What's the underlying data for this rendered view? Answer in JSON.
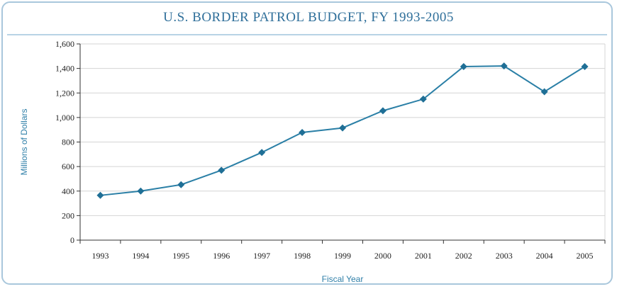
{
  "chart_data": {
    "type": "line",
    "title": "U.S. BORDER PATROL BUDGET, FY 1993-2005",
    "xlabel": "Fiscal Year",
    "ylabel": "Millions of Dollars",
    "categories": [
      "1993",
      "1994",
      "1995",
      "1996",
      "1997",
      "1998",
      "1999",
      "2000",
      "2001",
      "2002",
      "2003",
      "2004",
      "2005"
    ],
    "series": [
      {
        "values": [
          365,
          400,
          452,
          570,
          715,
          878,
          915,
          1055,
          1150,
          1415,
          1420,
          1210,
          1415
        ]
      }
    ],
    "ylim": [
      0,
      1600
    ],
    "yticks": [
      "0",
      "200",
      "400",
      "600",
      "800",
      "1,000",
      "1,200",
      "1,400",
      "1,600"
    ],
    "grid": true,
    "legend": "none",
    "colors": {
      "line": "#2a7fa6",
      "marker": "#1f6f96",
      "title": "#2f6f9a",
      "axis_title": "#2f7fa8",
      "grid": "#d4d4d4",
      "frame": "#a9c7dc"
    }
  }
}
